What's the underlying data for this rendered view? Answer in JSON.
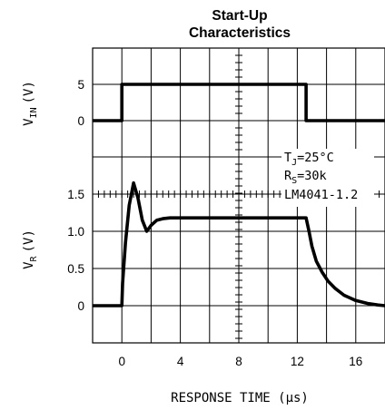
{
  "chart_data": {
    "type": "line",
    "title_lines": [
      "Start-Up",
      "Characteristics"
    ],
    "xlabel": "RESPONSE TIME (μs)",
    "xlim": [
      -2,
      18
    ],
    "x_ticks": [
      0,
      4,
      8,
      12,
      16
    ],
    "x_tick_labels": [
      "0",
      "4",
      "8",
      "12",
      "16"
    ],
    "grid": true,
    "panels": [
      {
        "ylabel_main": "V",
        "ylabel_sub": "IN",
        "ylabel_unit": "(V)",
        "y_ticks": [
          0,
          5
        ],
        "y_tick_labels": [
          "0",
          "5"
        ],
        "series": [
          {
            "x": [
              -2,
              0,
              0,
              12.6,
              12.6,
              18
            ],
            "y": [
              0,
              0,
              5,
              5,
              0,
              0
            ]
          }
        ]
      },
      {
        "ylabel_main": "V",
        "ylabel_sub": "R",
        "ylabel_unit": "(V)",
        "y_ticks": [
          0,
          0.5,
          1.0,
          1.5
        ],
        "y_tick_labels": [
          "0",
          "0.5",
          "1.0",
          "1.5"
        ],
        "series": [
          {
            "x": [
              -2,
              0,
              0.05,
              0.25,
              0.5,
              0.8,
              1.1,
              1.4,
              1.7,
              2.0,
              2.4,
              2.8,
              3.3,
              4,
              8,
              12,
              12.6,
              12.8,
              13.0,
              13.3,
              13.7,
              14.1,
              14.6,
              15.2,
              16.0,
              16.8,
              17.5,
              18
            ],
            "y": [
              0,
              0,
              0.3,
              0.85,
              1.35,
              1.65,
              1.45,
              1.15,
              1.0,
              1.08,
              1.15,
              1.17,
              1.18,
              1.18,
              1.18,
              1.18,
              1.18,
              1.0,
              0.8,
              0.6,
              0.45,
              0.33,
              0.23,
              0.14,
              0.07,
              0.03,
              0.01,
              0.0
            ]
          }
        ]
      }
    ],
    "annotations": {
      "tj": {
        "main": "T",
        "sub": "J",
        "rest": "=25°C"
      },
      "rs": {
        "main": "R",
        "sub": "S",
        "rest": "=30k"
      },
      "part": "LM4041-1.2"
    }
  }
}
